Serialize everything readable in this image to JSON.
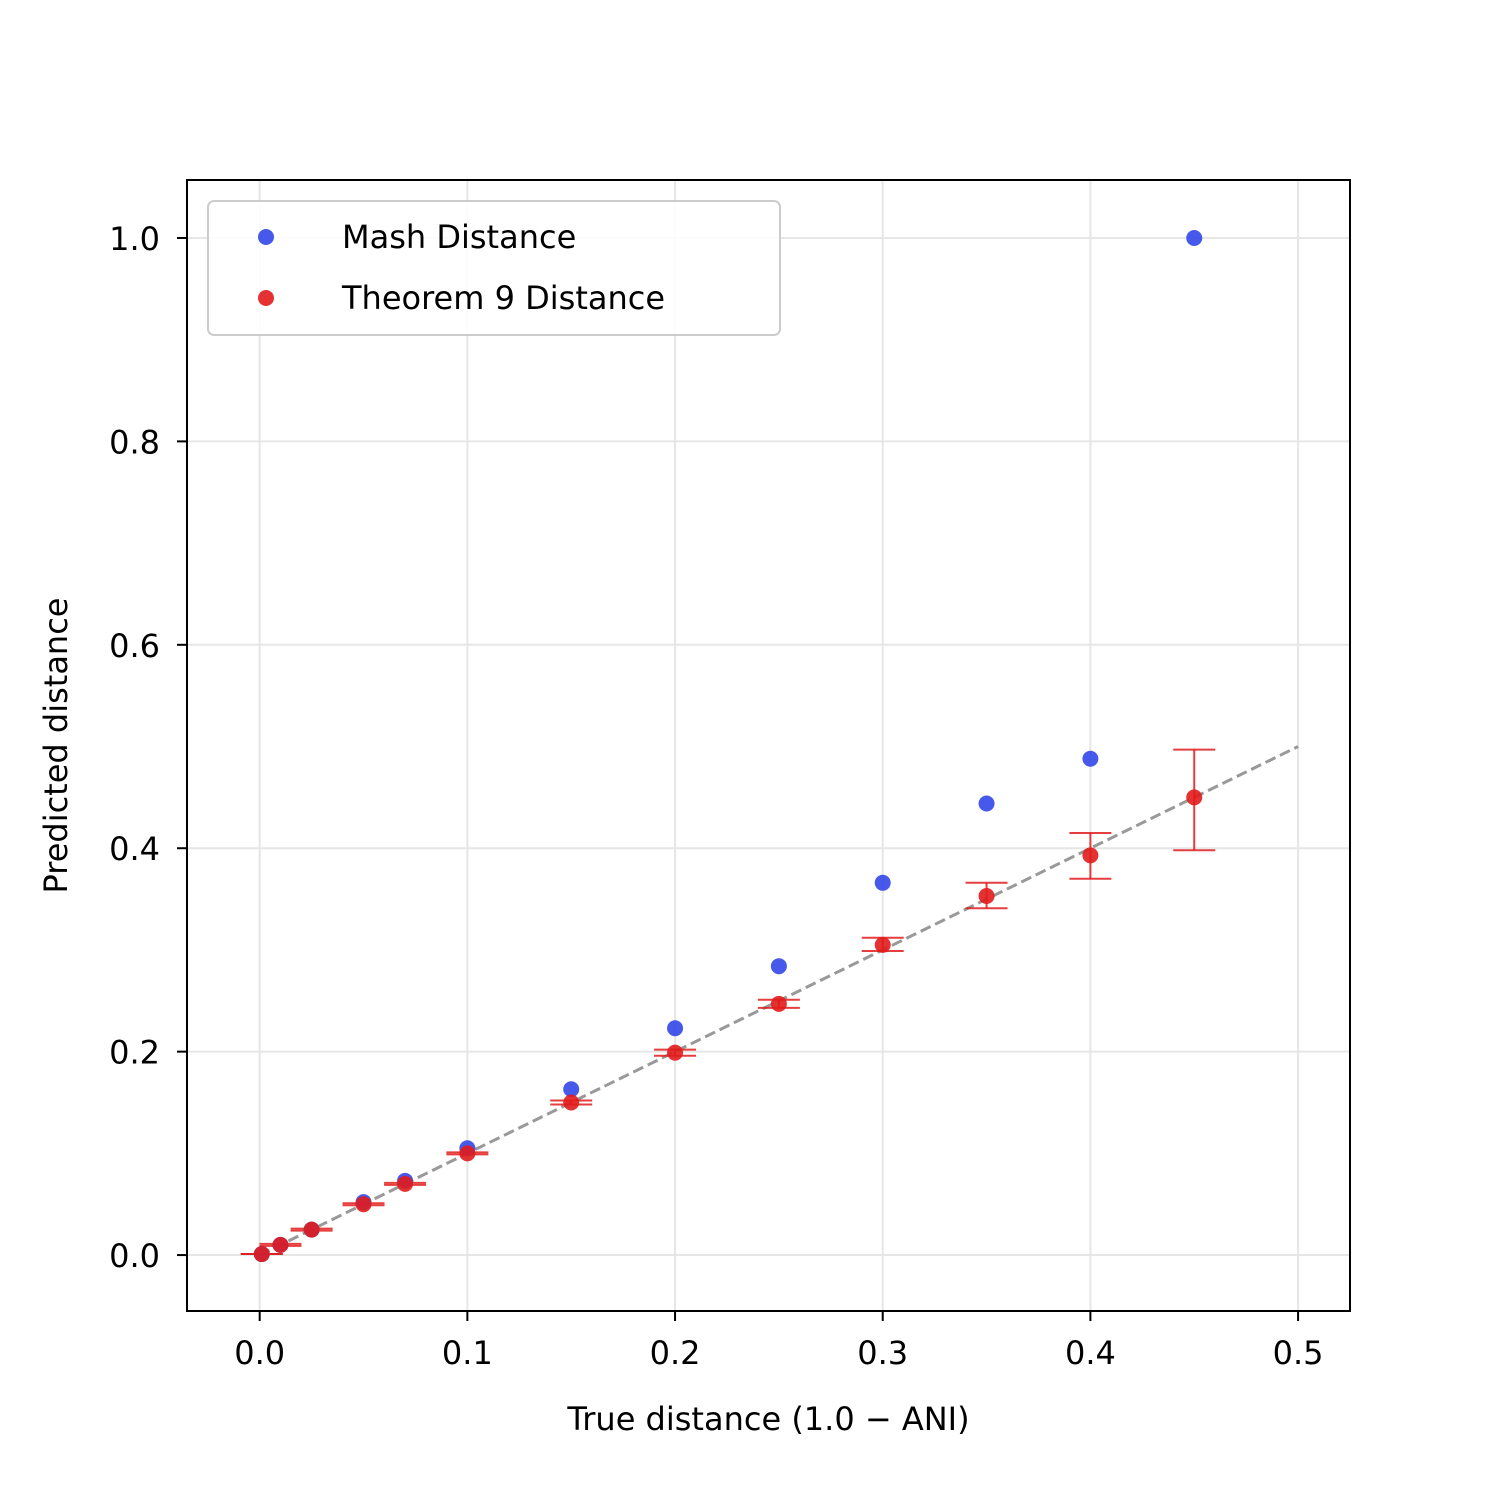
{
  "chart_data": {
    "type": "scatter",
    "title": "",
    "xlabel": "True distance (1.0 − ANI)",
    "ylabel": "Predicted distance",
    "xlim": [
      -0.035,
      0.525
    ],
    "ylim": [
      -0.055,
      1.057
    ],
    "xticks": [
      0.0,
      0.1,
      0.2,
      0.3,
      0.4,
      0.5
    ],
    "yticks": [
      0.0,
      0.2,
      0.4,
      0.6,
      0.8,
      1.0
    ],
    "xtick_labels": [
      "0.0",
      "0.1",
      "0.2",
      "0.3",
      "0.4",
      "0.5"
    ],
    "ytick_labels": [
      "0.0",
      "0.2",
      "0.4",
      "0.6",
      "0.8",
      "1.0"
    ],
    "grid": true,
    "legend_position": "top-left",
    "reference_line": {
      "x": [
        0.0,
        0.5
      ],
      "y": [
        0.0,
        0.5
      ],
      "style": "dashed",
      "color": "#999999"
    },
    "series": [
      {
        "name": "Mash Distance",
        "color": "#3347e8",
        "x": [
          0.001,
          0.01,
          0.025,
          0.05,
          0.07,
          0.1,
          0.15,
          0.2,
          0.25,
          0.3,
          0.35,
          0.4,
          0.45
        ],
        "y": [
          0.001,
          0.01,
          0.025,
          0.052,
          0.073,
          0.105,
          0.163,
          0.223,
          0.284,
          0.366,
          0.444,
          0.488,
          1.0
        ]
      },
      {
        "name": "Theorem 9 Distance",
        "color": "#e11c1c",
        "x": [
          0.001,
          0.01,
          0.025,
          0.05,
          0.07,
          0.1,
          0.15,
          0.2,
          0.25,
          0.3,
          0.35,
          0.4,
          0.45
        ],
        "y": [
          0.001,
          0.01,
          0.025,
          0.05,
          0.07,
          0.1,
          0.15,
          0.199,
          0.247,
          0.305,
          0.353,
          0.393,
          0.45
        ],
        "err_low": [
          0.001,
          0.009,
          0.024,
          0.049,
          0.069,
          0.099,
          0.148,
          0.196,
          0.243,
          0.299,
          0.341,
          0.37,
          0.398
        ],
        "err_high": [
          0.001,
          0.011,
          0.026,
          0.051,
          0.071,
          0.101,
          0.152,
          0.202,
          0.251,
          0.312,
          0.366,
          0.415,
          0.497
        ]
      }
    ]
  }
}
